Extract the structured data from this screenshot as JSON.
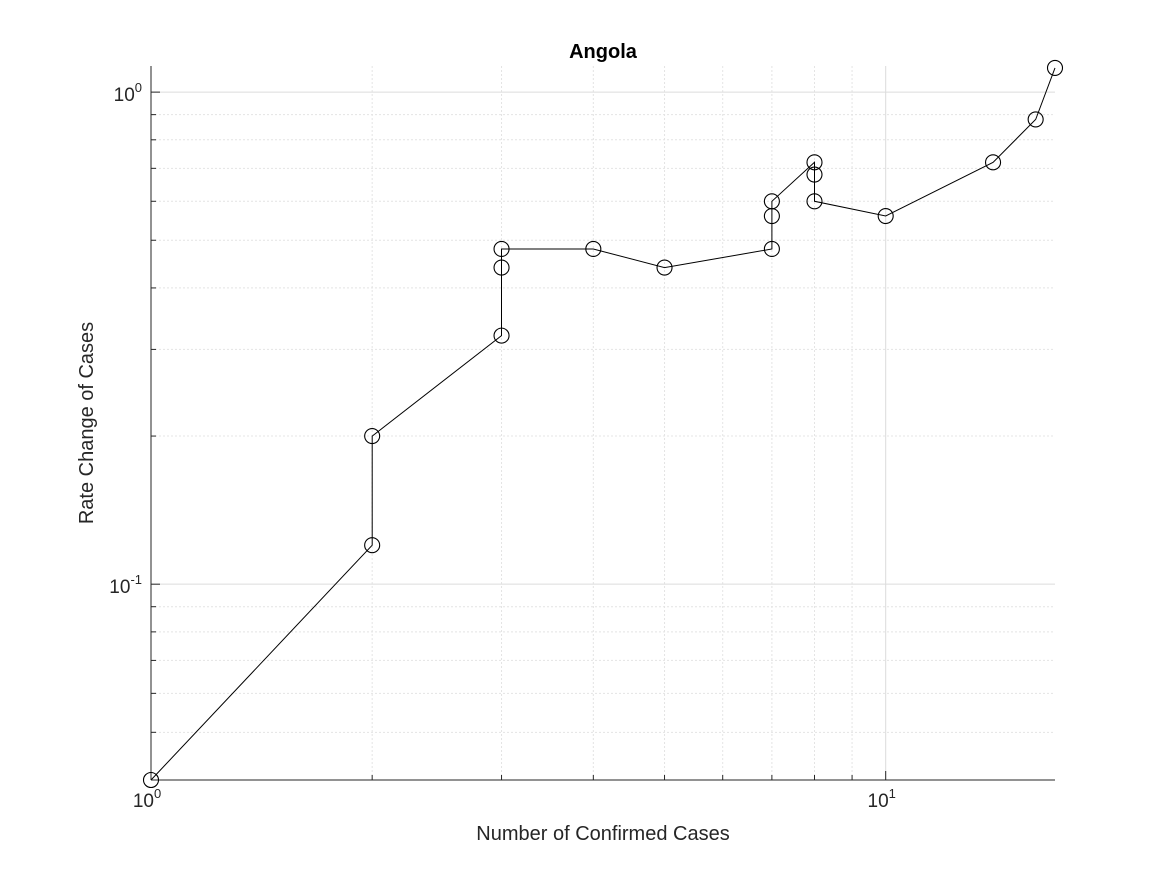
{
  "chart_data": {
    "type": "line",
    "title": "Angola",
    "xlabel": "Number of Confirmed Cases",
    "ylabel": "Rate Change of Cases",
    "xscale": "log",
    "yscale": "log",
    "xlim": [
      1,
      17
    ],
    "ylim": [
      0.04,
      1.13
    ],
    "x_ticks": [
      {
        "value": 1,
        "base": "10",
        "exp": "0"
      },
      {
        "value": 10,
        "base": "10",
        "exp": "1"
      }
    ],
    "y_ticks": [
      {
        "value": 0.1,
        "base": "10",
        "exp": "-1"
      },
      {
        "value": 1,
        "base": "10",
        "exp": "0"
      }
    ],
    "grid": true,
    "marker": "open-circle",
    "line_color": "#000000",
    "series": [
      {
        "x": [
          1,
          2,
          2,
          3,
          3,
          3,
          4,
          5,
          7,
          7,
          7,
          8,
          8,
          8,
          10,
          14,
          16,
          17
        ],
        "y": [
          0.04,
          0.12,
          0.2,
          0.32,
          0.44,
          0.48,
          0.48,
          0.44,
          0.48,
          0.56,
          0.6,
          0.72,
          0.68,
          0.6,
          0.56,
          0.72,
          0.88,
          1.12
        ]
      }
    ]
  }
}
